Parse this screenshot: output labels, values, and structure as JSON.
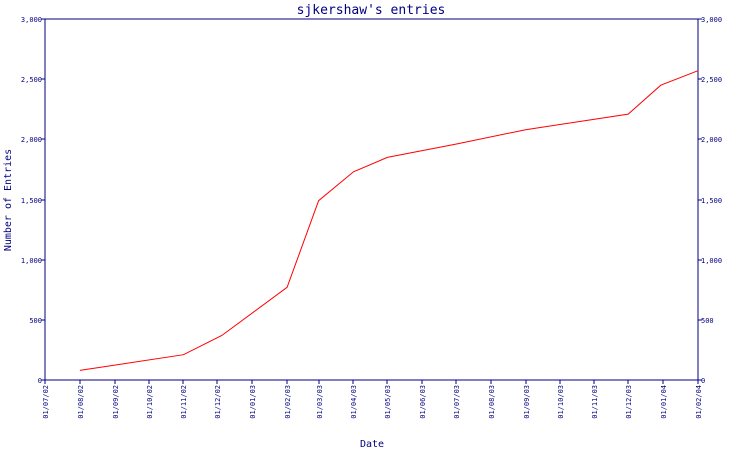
{
  "chart_data": {
    "type": "line",
    "title": "sjkershaw's entries",
    "xlabel": "Date",
    "ylabel": "Number of Entries",
    "ylim": [
      0,
      3000
    ],
    "y_ticks": [
      "0",
      "500",
      "1,000",
      "1,500",
      "2,000",
      "2,500",
      "3,000"
    ],
    "x_ticks": [
      "01/07/02",
      "01/08/02",
      "01/09/02",
      "01/10/02",
      "01/11/02",
      "01/12/02",
      "01/01/03",
      "01/02/03",
      "01/03/03",
      "01/04/03",
      "01/05/03",
      "01/06/03",
      "01/07/03",
      "01/08/03",
      "01/09/03",
      "01/10/03",
      "01/11/03",
      "01/12/03",
      "01/01/04",
      "01/02/04"
    ],
    "grid": false,
    "line_color": "#ff0000",
    "axis_color": "#000080",
    "series": [
      {
        "x": [
          "2002-08-01",
          "2002-11-01",
          "2002-12-05",
          "2003-02-01",
          "2003-03-01",
          "2003-04-01",
          "2003-05-01",
          "2003-07-01",
          "2003-09-01",
          "2003-12-01",
          "2003-12-30",
          "2004-02-01"
        ],
        "values": [
          80,
          210,
          370,
          770,
          1490,
          1730,
          1850,
          1960,
          2080,
          2210,
          2450,
          2570
        ]
      }
    ]
  }
}
